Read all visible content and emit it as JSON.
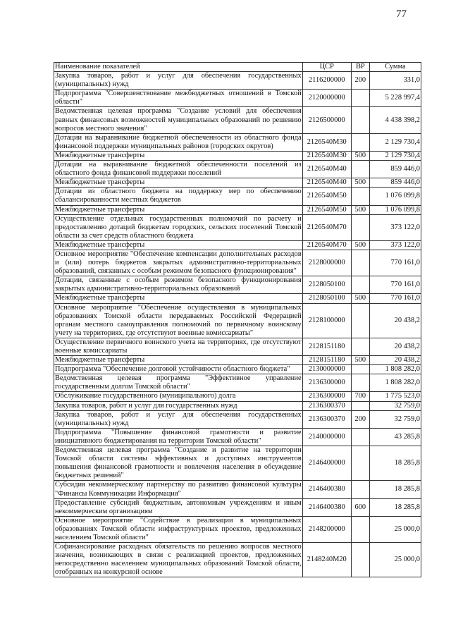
{
  "page_number": "77",
  "table": {
    "headers": {
      "name": "Наименование показателей",
      "csr": "ЦСР",
      "vr": "ВР",
      "sum": "Сумма"
    },
    "rows": [
      {
        "name": "Закупка товаров, работ и услуг для обеспечения государственных (муниципальных) нужд",
        "csr": "2116200000",
        "vr": "200",
        "sum": "331,0"
      },
      {
        "name": "Подпрограмма \"Совершенствование межбюджетных отношений в Томской области\"",
        "csr": "2120000000",
        "vr": "",
        "sum": "5 228 997,4"
      },
      {
        "name": "Ведомственная целевая программа \"Создание условий для обеспечения равных финансовых возможностей муниципальных образований по решению вопросов местного значения\"",
        "csr": "2126500000",
        "vr": "",
        "sum": "4 438 398,2"
      },
      {
        "name": "Дотации на выравнивание бюджетной обеспеченности из областного фонда финансовой поддержки муниципальных районов (городских округов)",
        "csr": "2126540M30",
        "vr": "",
        "sum": "2 129 730,4"
      },
      {
        "name": "Межбюджетные трансферты",
        "csr": "2126540M30",
        "vr": "500",
        "sum": "2 129 730,4"
      },
      {
        "name": "Дотации на выравнивание бюджетной обеспеченности поселений из областного фонда финансовой поддержки поселений",
        "csr": "2126540M40",
        "vr": "",
        "sum": "859 446,0"
      },
      {
        "name": "Межбюджетные трансферты",
        "csr": "2126540M40",
        "vr": "500",
        "sum": "859 446,0"
      },
      {
        "name": "Дотации из областного бюджета на поддержку мер по обеспечению сбалансированности местных бюджетов",
        "csr": "2126540M50",
        "vr": "",
        "sum": "1 076 099,8"
      },
      {
        "name": "Межбюджетные трансферты",
        "csr": "2126540M50",
        "vr": "500",
        "sum": "1 076 099,8"
      },
      {
        "name": "Осуществление отдельных государственных полномочий по расчету и предоставлению дотаций бюджетам городских, сельских поселений Томской области за счет средств областного бюджета",
        "csr": "2126540M70",
        "vr": "",
        "sum": "373 122,0"
      },
      {
        "name": "Межбюджетные трансферты",
        "csr": "2126540M70",
        "vr": "500",
        "sum": "373 122,0"
      },
      {
        "name": "Основное мероприятие \"Обеспечение компенсации дополнительных расходов и (или) потерь бюджетов закрытых административно-территориальных образований, связанных с особым режимом безопасного функционирования\"",
        "csr": "2128000000",
        "vr": "",
        "sum": "770 161,0"
      },
      {
        "name": "Дотации, связанные с особым режимом безопасного функционирования закрытых административно-территориальных образований",
        "csr": "2128050100",
        "vr": "",
        "sum": "770 161,0"
      },
      {
        "name": "Межбюджетные трансферты",
        "csr": "2128050100",
        "vr": "500",
        "sum": "770 161,0"
      },
      {
        "name": "Основное мероприятие \"Обеспечение осуществления в муниципальных образованиях Томской области передаваемых Российской Федерацией органам местного самоуправления полномочий по первичному воинскому учету на территориях, где отсутствуют военные комиссариаты\"",
        "csr": "2128100000",
        "vr": "",
        "sum": "20 438,2"
      },
      {
        "name": "Осуществление первичного воинского учета на территориях, где отсутствуют военные комиссариаты",
        "csr": "2128151180",
        "vr": "",
        "sum": "20 438,2"
      },
      {
        "name": "Межбюджетные трансферты",
        "csr": "2128151180",
        "vr": "500",
        "sum": "20 438,2"
      },
      {
        "name": "Подпрограмма \"Обеспечение долговой устойчивости областного бюджета\"",
        "csr": "2130000000",
        "vr": "",
        "sum": "1 808 282,0"
      },
      {
        "name": "Ведомственная целевая программа \"Эффективное управление государственным долгом Томской области\"",
        "csr": "2136300000",
        "vr": "",
        "sum": "1 808 282,0"
      },
      {
        "name": "Обслуживание государственного (муниципального) долга",
        "csr": "2136300000",
        "vr": "700",
        "sum": "1 775 523,0"
      },
      {
        "name": "Закупка товаров, работ и услуг для государственных нужд",
        "csr": "2136300370",
        "vr": "",
        "sum": "32 759,0"
      },
      {
        "name": "Закупка товаров, работ и услуг для обеспечения государственных (муниципальных) нужд",
        "csr": "2136300370",
        "vr": "200",
        "sum": "32 759,0"
      },
      {
        "name": "Подпрограмма \"Повышение финансовой грамотности и развитие инициативного бюджетирования на территории Томской области\"",
        "csr": "2140000000",
        "vr": "",
        "sum": "43 285,8"
      },
      {
        "name": "Ведомственная целевая программа \"Создание и развитие на территории Томской области системы эффективных и доступных инструментов повышения финансовой грамотности и вовлечения населения в обсуждение бюджетных решений\"",
        "csr": "2146400000",
        "vr": "",
        "sum": "18 285,8"
      },
      {
        "name": "Субсидия некоммерческому партнерству по развитию финансовой культуры \"Финансы Коммуникации Информация\"",
        "csr": "2146400380",
        "vr": "",
        "sum": "18 285,8"
      },
      {
        "name": "Предоставление субсидий бюджетным, автономным учреждениям и иным некоммерческим организациям",
        "csr": "2146400380",
        "vr": "600",
        "sum": "18 285,8"
      },
      {
        "name": "Основное мероприятие \"Содействие в реализации в муниципальных образованиях Томской области инфраструктурных проектов, предложенных населением Томской области\"",
        "csr": "2148200000",
        "vr": "",
        "sum": "25 000,0"
      },
      {
        "name": "Софинансирование расходных обязательств по решению вопросов местного значения, возникающих в связи с реализацией проектов, предложенных непосредственно населением муниципальных образований Томской области, отобранных на конкурсной основе",
        "csr": "2148240M20",
        "vr": "",
        "sum": "25 000,0"
      }
    ]
  }
}
